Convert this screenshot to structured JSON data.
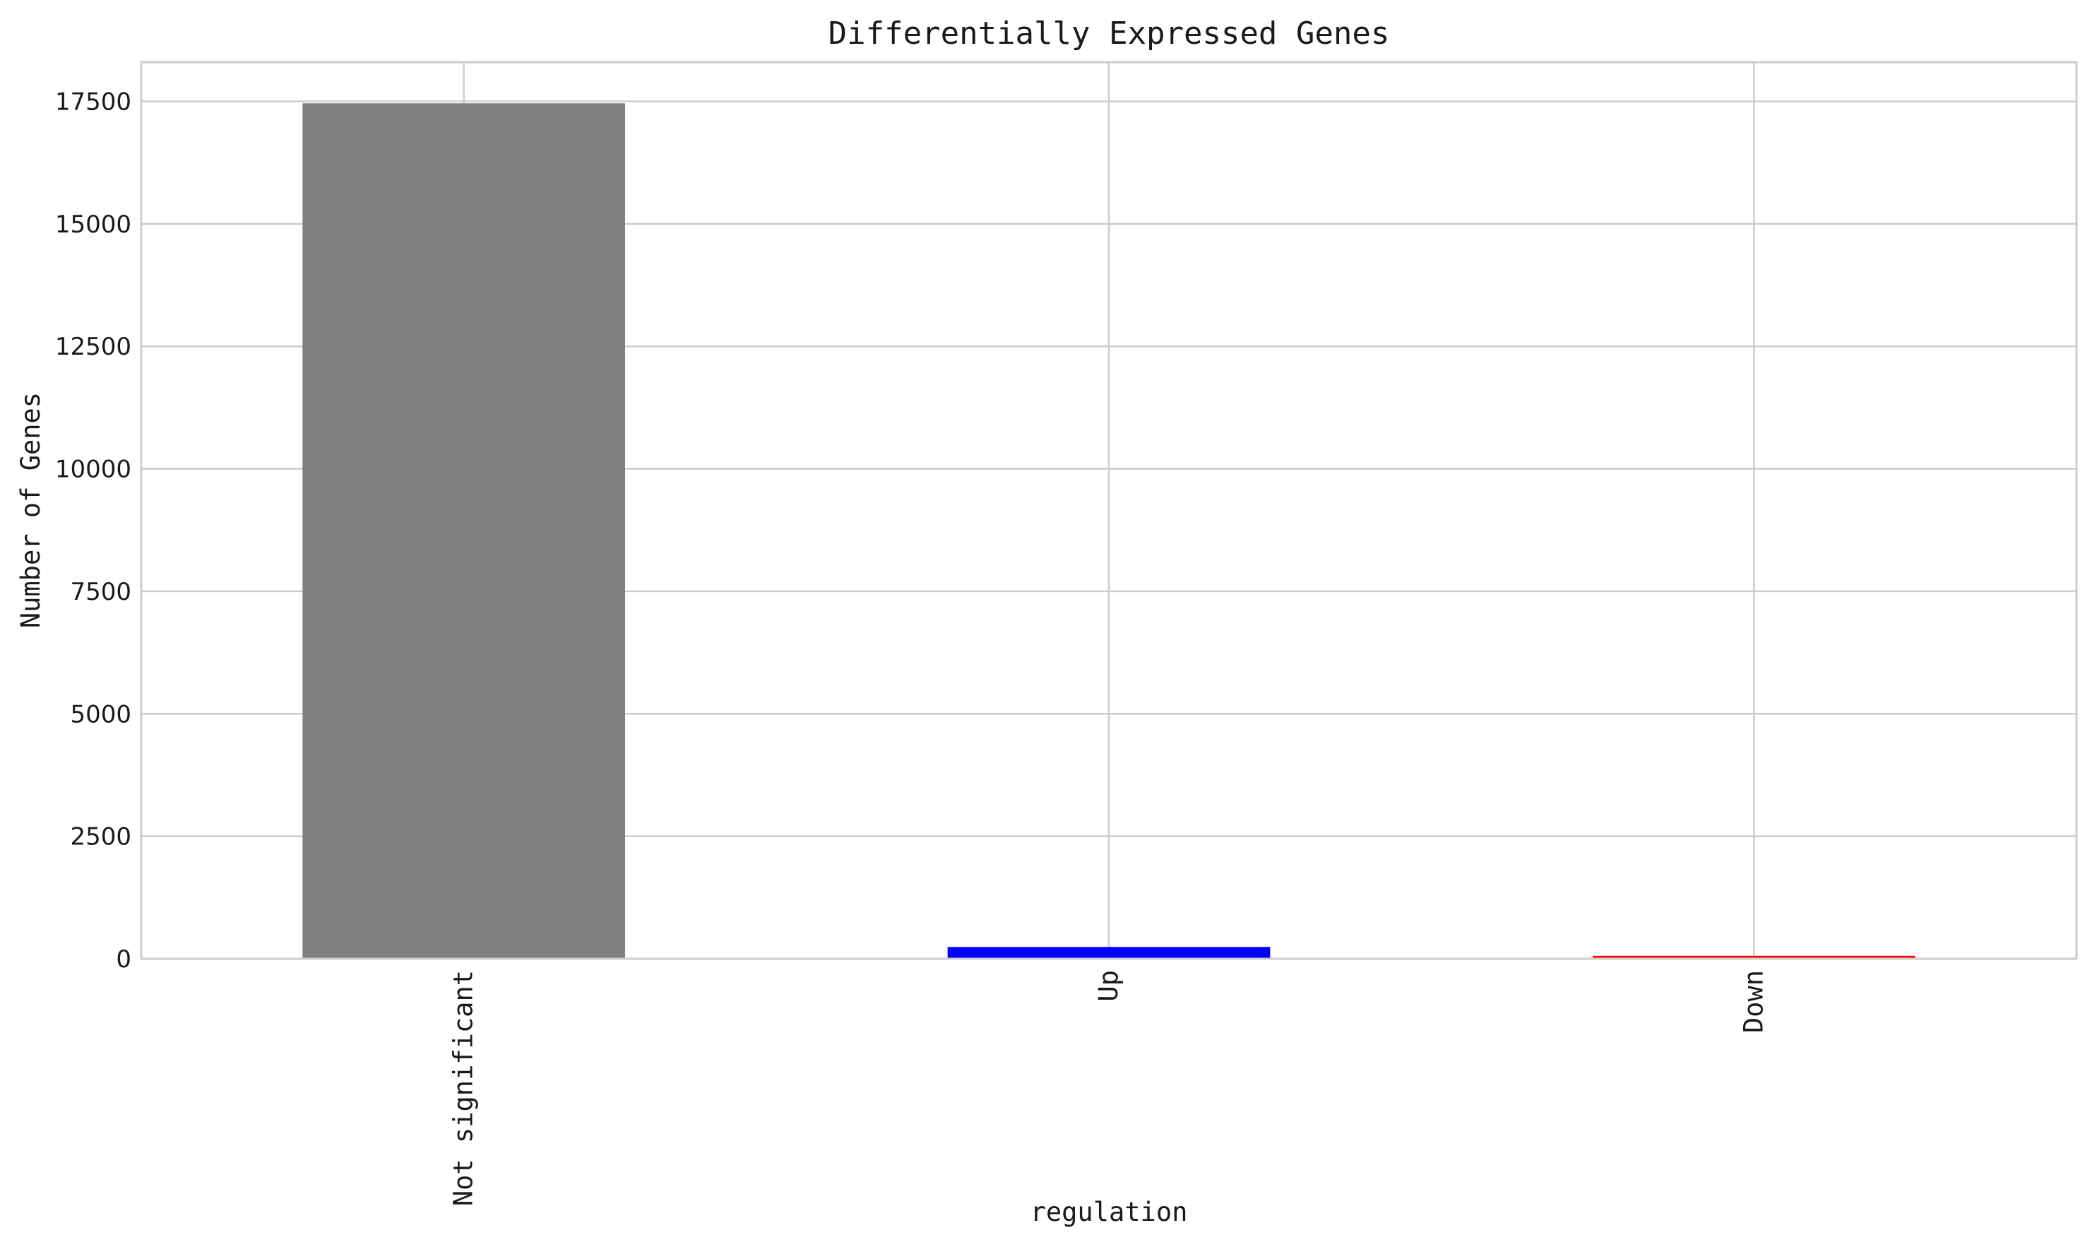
{
  "chart_data": {
    "type": "bar",
    "title": "Differentially Expressed Genes",
    "xlabel": "regulation",
    "ylabel": "Number of Genes",
    "categories": [
      "Not significant",
      "Up",
      "Down"
    ],
    "values": [
      17460,
      240,
      60
    ],
    "colors": [
      "#808080",
      "#0000ff",
      "#ff0000"
    ],
    "ylim": [
      0,
      18300
    ],
    "yticks": [
      0,
      2500,
      5000,
      7500,
      10000,
      12500,
      15000,
      17500
    ],
    "ytick_labels": [
      "0",
      "2500",
      "5000",
      "7500",
      "10000",
      "12500",
      "15000",
      "17500"
    ],
    "grid": true,
    "legend": "none"
  }
}
